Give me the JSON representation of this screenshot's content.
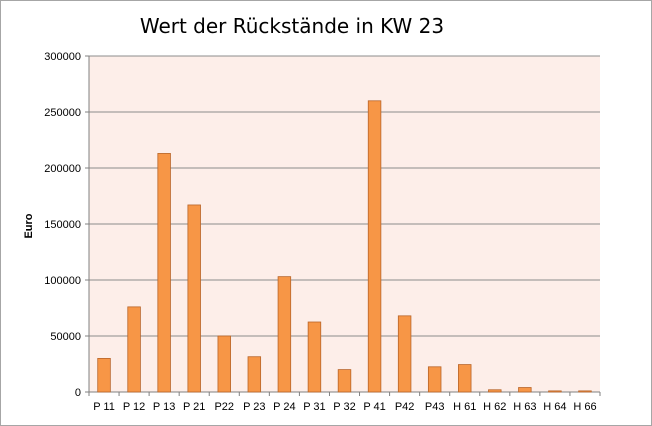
{
  "chart_data": {
    "type": "bar",
    "title": "Wert der Rückstände in KW 23",
    "xlabel": "",
    "ylabel": "Euro",
    "ylim": [
      0,
      300000
    ],
    "yticks": [
      0,
      50000,
      100000,
      150000,
      200000,
      250000,
      300000
    ],
    "ytick_labels": [
      "0",
      "50000",
      "100000",
      "150000",
      "200000",
      "250000",
      "300000"
    ],
    "grid": true,
    "legend": "none",
    "categories": [
      "P 11",
      "P 12",
      "P 13",
      "P 21",
      "P22",
      "P 23",
      "P 24",
      "P 31",
      "P 32",
      "P 41",
      "P42",
      "P43",
      "H 61",
      "H 62",
      "H 63",
      "H 64",
      "H 66"
    ],
    "values": [
      30000,
      76000,
      213000,
      167000,
      50000,
      31500,
      103000,
      62500,
      20000,
      260000,
      68000,
      22500,
      24500,
      2000,
      4000,
      1000,
      1000
    ],
    "colors": {
      "bar_fill": "#f79646",
      "bar_stroke": "#b8652a",
      "plot_background": "#fdeee9",
      "gridline": "#8c8c8c"
    }
  }
}
